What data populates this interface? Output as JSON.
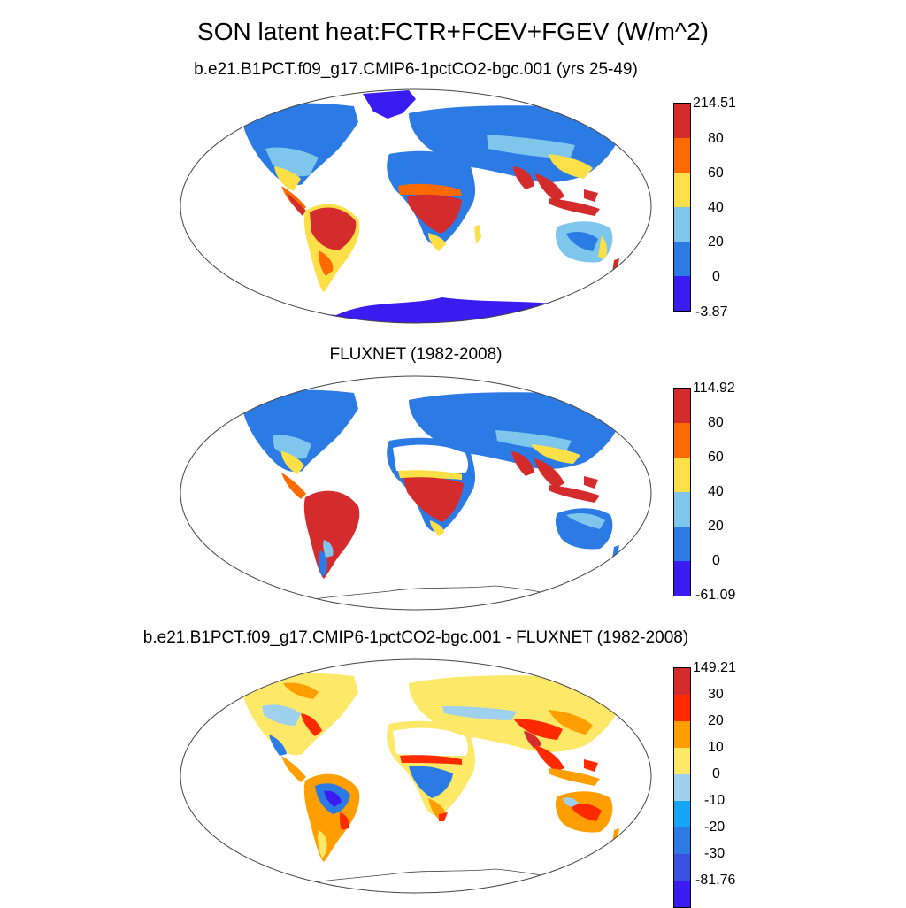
{
  "title": "SON latent heat:FCTR+FCEV+FGEV (W/m^2)",
  "panels": [
    {
      "title": "b.e21.B1PCT.f09_g17.CMIP6-1pctCO2-bgc.001 (yrs 25-49)",
      "colorbar": {
        "labels": [
          "214.51",
          "80",
          "60",
          "40",
          "20",
          "0",
          "-3.87"
        ],
        "colors": [
          "#d42c2c",
          "#ff6a00",
          "#fde047",
          "#7ec6ec",
          "#2c7be5",
          "#3b1cf0"
        ]
      }
    },
    {
      "title": "FLUXNET (1982-2008)",
      "colorbar": {
        "labels": [
          "114.92",
          "80",
          "60",
          "40",
          "20",
          "0",
          "-61.09"
        ],
        "colors": [
          "#d42c2c",
          "#ff6a00",
          "#fde047",
          "#7ec6ec",
          "#2c7be5",
          "#3b1cf0"
        ]
      }
    },
    {
      "title": "b.e21.B1PCT.f09_g17.CMIP6-1pctCO2-bgc.001 - FLUXNET (1982-2008)",
      "colorbar": {
        "labels": [
          "149.21",
          "30",
          "20",
          "10",
          "0",
          "-10",
          "-20",
          "-30",
          "-81.76"
        ],
        "colors": [
          "#d42c2c",
          "#ff2a00",
          "#ff9e00",
          "#fde868",
          "#9fd1ee",
          "#14a6f4",
          "#2c7be5",
          "#3b50e0",
          "#3b1cf0"
        ]
      }
    }
  ]
}
